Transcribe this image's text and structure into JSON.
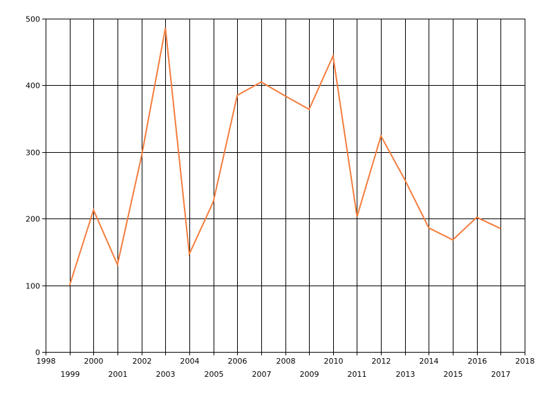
{
  "chart_data": {
    "type": "line",
    "x": [
      1999,
      2000,
      2001,
      2002,
      2003,
      2004,
      2005,
      2006,
      2007,
      2008,
      2009,
      2010,
      2011,
      2012,
      2013,
      2014,
      2015,
      2016,
      2017
    ],
    "series": [
      {
        "values": [
          100,
          213,
          131,
          293,
          486,
          147,
          225,
          385,
          405,
          384,
          364,
          444,
          203,
          324,
          258,
          186,
          168,
          202,
          185
        ]
      }
    ],
    "xlim": [
      1998,
      2018
    ],
    "ylim": [
      0,
      500
    ],
    "x_ticks": [
      "1998",
      "1999",
      "2000",
      "2001",
      "2002",
      "2003",
      "2004",
      "2005",
      "2006",
      "2007",
      "2008",
      "2009",
      "2010",
      "2011",
      "2012",
      "2013",
      "2014",
      "2015",
      "2016",
      "2017",
      "2018"
    ],
    "y_ticks": [
      "0",
      "100",
      "200",
      "300",
      "400",
      "500"
    ],
    "x_tick_label_style": "staggered",
    "grid": true,
    "line_color": "#f47c3c",
    "grid_color": "#000000"
  }
}
